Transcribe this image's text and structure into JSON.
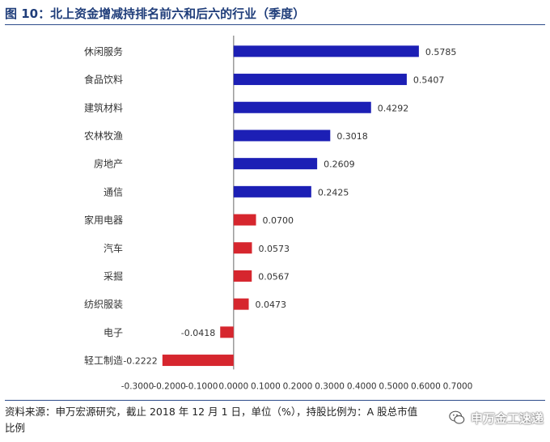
{
  "title": "图 10：北上资金增减持排名前六和后六的行业（季度）",
  "footer": {
    "line1": "资料来源：申万宏源研究，截止 2018 年 12 月 1 日，单位（%），持股比例为：A 股总市值",
    "line2": "比例"
  },
  "watermark": {
    "text": "申万金工速递",
    "icon": "wechat-icon"
  },
  "chart_data": {
    "type": "bar",
    "orientation": "horizontal",
    "categories": [
      "休闲服务",
      "食品饮料",
      "建筑材料",
      "农林牧渔",
      "房地产",
      "通信",
      "家用电器",
      "汽车",
      "采掘",
      "纺织服装",
      "电子",
      "轻工制造"
    ],
    "values": [
      0.5785,
      0.5407,
      0.4292,
      0.3018,
      0.2609,
      0.2425,
      0.07,
      0.0573,
      0.0567,
      0.0473,
      -0.0418,
      -0.2222
    ],
    "value_labels": [
      "0.5785",
      "0.5407",
      "0.4292",
      "0.3018",
      "0.2609",
      "0.2425",
      "0.0700",
      "0.0573",
      "0.0567",
      "0.0473",
      "-0.0418",
      "-0.2222"
    ],
    "xlim": [
      -0.3,
      0.7
    ],
    "ticks": [
      -0.3,
      -0.2,
      -0.1,
      0.0,
      0.1,
      0.2,
      0.3,
      0.4,
      0.5,
      0.6,
      0.7
    ],
    "tick_labels": [
      "-0.3000",
      "-0.2000",
      "-0.1000",
      "0.0000",
      "0.1000",
      "0.2000",
      "0.3000",
      "0.4000",
      "0.5000",
      "0.6000",
      "0.7000"
    ],
    "colors": {
      "top_six": "#1c1fb5",
      "bottom_six": "#d6262e",
      "axis": "#9a9a9a"
    },
    "grid": false,
    "legend": "none"
  }
}
